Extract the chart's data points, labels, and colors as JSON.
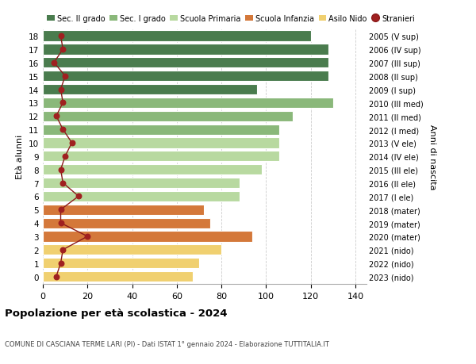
{
  "ages": [
    18,
    17,
    16,
    15,
    14,
    13,
    12,
    11,
    10,
    9,
    8,
    7,
    6,
    5,
    4,
    3,
    2,
    1,
    0
  ],
  "years": [
    "2005 (V sup)",
    "2006 (IV sup)",
    "2007 (III sup)",
    "2008 (II sup)",
    "2009 (I sup)",
    "2010 (III med)",
    "2011 (II med)",
    "2012 (I med)",
    "2013 (V ele)",
    "2014 (IV ele)",
    "2015 (III ele)",
    "2016 (II ele)",
    "2017 (I ele)",
    "2018 (mater)",
    "2019 (mater)",
    "2020 (mater)",
    "2021 (nido)",
    "2022 (nido)",
    "2023 (nido)"
  ],
  "bar_values": [
    120,
    128,
    128,
    128,
    96,
    130,
    112,
    106,
    106,
    106,
    98,
    88,
    88,
    72,
    75,
    94,
    80,
    70,
    67
  ],
  "bar_colors": [
    "#4a7c4e",
    "#4a7c4e",
    "#4a7c4e",
    "#4a7c4e",
    "#4a7c4e",
    "#8ab87a",
    "#8ab87a",
    "#8ab87a",
    "#b8d9a0",
    "#b8d9a0",
    "#b8d9a0",
    "#b8d9a0",
    "#b8d9a0",
    "#d4783a",
    "#d4783a",
    "#d4783a",
    "#f0d070",
    "#f0d070",
    "#f0d070"
  ],
  "stranieri_values": [
    8,
    9,
    5,
    10,
    8,
    9,
    6,
    9,
    13,
    10,
    8,
    9,
    16,
    8,
    8,
    20,
    9,
    8,
    6
  ],
  "legend_labels": [
    "Sec. II grado",
    "Sec. I grado",
    "Scuola Primaria",
    "Scuola Infanzia",
    "Asilo Nido",
    "Stranieri"
  ],
  "legend_colors": [
    "#4a7c4e",
    "#8ab87a",
    "#b8d9a0",
    "#d4783a",
    "#f0d070",
    "#a02020"
  ],
  "title": "Popolazione per età scolastica - 2024",
  "subtitle": "COMUNE DI CASCIANA TERME LARI (PI) - Dati ISTAT 1° gennaio 2024 - Elaborazione TUTTITALIA.IT",
  "ylabel": "Età alunni",
  "ylabel2": "Anni di nascita",
  "xlim": [
    0,
    145
  ],
  "bg_color": "#ffffff",
  "grid_color": "#cccccc",
  "bar_height": 0.78,
  "stranieri_line_color": "#8b1a1a",
  "stranieri_marker_color": "#a02020"
}
